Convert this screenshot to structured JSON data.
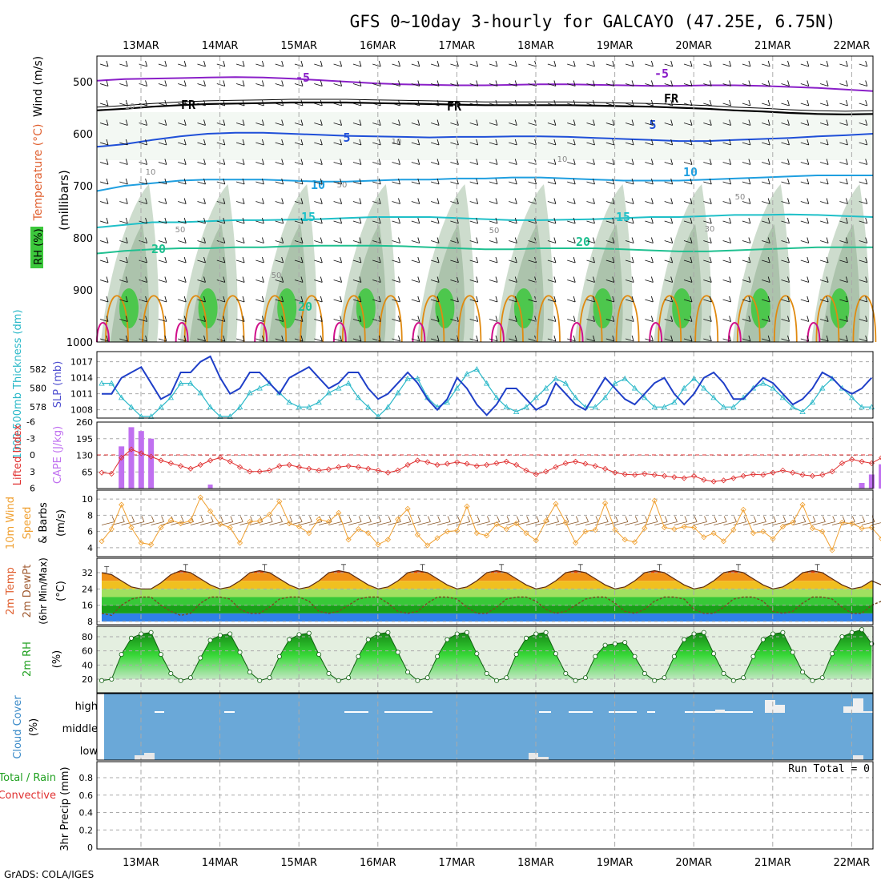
{
  "header": {
    "title": "GFS 0~10day 3-hourly for GALCAYO (47.25E, 6.75N)",
    "footer": "GrADS: COLA/IGES"
  },
  "colors": {
    "grid": "#aaaaaa",
    "rh_green": "#3cc83c",
    "slp": "#1f3fc8",
    "thickness": "#2ab8c8",
    "lifted": "#e03030",
    "cape": "#c070f0",
    "wind_orange": "#f0a030",
    "barb_brown": "#8b5a2b",
    "cloud_blue": "#6aa8d8",
    "rh2m_green": "#1fa01f"
  },
  "dates": [
    "13MAR",
    "14MAR",
    "15MAR",
    "16MAR",
    "17MAR",
    "18MAR",
    "19MAR",
    "20MAR",
    "21MAR",
    "22MAR"
  ],
  "chart_data": [
    {
      "type": "line",
      "panel": "upper_air",
      "ylabel_parts": [
        "RH (%)",
        "Temperature (°C)",
        "Wind (m/s)"
      ],
      "yunit": "(millibars)",
      "yticks": [
        500,
        600,
        700,
        800,
        900,
        1000
      ],
      "ylim": [
        450,
        1000
      ],
      "isotherm_labels": [
        "-5",
        "-5",
        "FR",
        "FR",
        "FR",
        "5",
        "5",
        "10",
        "10",
        "15",
        "15",
        "20",
        "20",
        "20"
      ],
      "rh_labels": [
        "10",
        "10",
        "10",
        "10",
        "50",
        "50",
        "50",
        "50",
        "50",
        "30"
      ],
      "isotherms": [
        {
          "name": "-5",
          "p": [
            498,
            495,
            494,
            493,
            492,
            491,
            492,
            494,
            497,
            500,
            503,
            505,
            506,
            507,
            507,
            506,
            505,
            505,
            506,
            507,
            508,
            508,
            507,
            507,
            508,
            510,
            512,
            515,
            518
          ]
        },
        {
          "name": "FR",
          "p": [
            555,
            552,
            548,
            545,
            543,
            542,
            541,
            540,
            540,
            540,
            541,
            542,
            543,
            544,
            545,
            545,
            545,
            545,
            546,
            547,
            548,
            550,
            552,
            555,
            557,
            560,
            562,
            563,
            562
          ]
        },
        {
          "name": "5",
          "p": [
            625,
            620,
            612,
            605,
            600,
            598,
            598,
            600,
            602,
            604,
            605,
            606,
            607,
            606,
            606,
            605,
            605,
            606,
            608,
            610,
            612,
            614,
            614,
            612,
            610,
            608,
            605,
            603,
            600
          ]
        },
        {
          "name": "10",
          "p": [
            710,
            700,
            695,
            690,
            688,
            688,
            688,
            690,
            692,
            692,
            690,
            688,
            688,
            686,
            686,
            684,
            684,
            686,
            688,
            690,
            690,
            690,
            688,
            686,
            684,
            682,
            680,
            680,
            680
          ]
        },
        {
          "name": "15",
          "p": [
            780,
            775,
            770,
            770,
            768,
            766,
            766,
            765,
            764,
            762,
            760,
            760,
            760,
            762,
            764,
            766,
            766,
            765,
            764,
            762,
            760,
            760,
            758,
            756,
            756,
            755,
            756,
            758,
            760
          ]
        },
        {
          "name": "20",
          "p": [
            830,
            825,
            822,
            820,
            820,
            818,
            818,
            816,
            815,
            815,
            815,
            816,
            818,
            820,
            822,
            822,
            820,
            820,
            820,
            822,
            824,
            826,
            826,
            824,
            822,
            820,
            818,
            818,
            818
          ]
        }
      ]
    },
    {
      "type": "line",
      "panel": "slp_thickness",
      "ylabel_left": "1000-500mb Thickness (dm)",
      "ylabel_right": "SLP (mb)",
      "yticks_left": [
        578,
        580,
        582
      ],
      "yticks_right": [
        1008,
        1011,
        1014,
        1017
      ],
      "series": [
        {
          "name": "SLP (mb)",
          "values": [
            1011,
            1011,
            1014,
            1015,
            1016,
            1013,
            1010,
            1011,
            1015,
            1015,
            1017,
            1018,
            1014,
            1011,
            1012,
            1015,
            1015,
            1013,
            1011,
            1014,
            1015,
            1016,
            1014,
            1012,
            1013,
            1015,
            1015,
            1012,
            1010,
            1011,
            1013,
            1015,
            1013,
            1010,
            1008,
            1010,
            1014,
            1012,
            1009,
            1007,
            1009,
            1012,
            1012,
            1010,
            1008,
            1009,
            1013,
            1011,
            1009,
            1008,
            1011,
            1014,
            1012,
            1010,
            1009,
            1011,
            1013,
            1014,
            1011,
            1009,
            1011,
            1014,
            1015,
            1013,
            1010,
            1010,
            1012,
            1014,
            1013,
            1011,
            1009,
            1010,
            1012,
            1015,
            1014,
            1012,
            1011,
            1012,
            1014
          ]
        },
        {
          "name": "1000-500mb Thickness (dm)",
          "values": [
            580.5,
            580.5,
            579,
            578,
            577,
            577,
            578,
            579,
            580.5,
            580.5,
            579.5,
            578,
            577,
            577,
            578,
            579.5,
            580,
            580.5,
            579.5,
            578.5,
            578,
            578,
            578.5,
            579.5,
            580,
            580.5,
            579,
            578,
            577,
            578,
            579.5,
            581,
            581,
            579,
            578,
            578.5,
            580,
            581.5,
            582,
            580.5,
            579,
            578,
            577.5,
            578,
            579,
            580,
            581,
            580.5,
            579,
            578,
            578,
            579,
            580.5,
            581,
            580,
            579,
            578,
            578,
            578.5,
            580,
            581,
            580,
            579,
            578,
            578,
            579,
            580,
            580.5,
            580,
            579,
            578,
            577.5,
            578.5,
            580,
            581,
            580,
            579,
            578,
            578
          ]
        }
      ]
    },
    {
      "type": "bar",
      "panel": "cape_li",
      "ylabel_left": "Lifted Index",
      "ylabel_right": "CAPE (J/kg)",
      "yticks_left": [
        -6,
        -3,
        0,
        3,
        6
      ],
      "yticks_right": [
        65,
        130,
        195,
        260
      ],
      "cape": [
        0,
        0,
        165,
        240,
        225,
        195,
        0,
        0,
        0,
        0,
        0,
        0,
        0,
        0,
        0,
        0,
        0,
        0,
        0,
        0,
        0,
        0,
        0,
        0,
        0,
        0,
        0,
        0,
        0,
        0,
        0,
        0,
        0,
        0,
        0,
        0,
        0,
        0,
        0,
        0,
        0,
        0,
        0,
        0,
        0,
        0,
        0,
        0,
        0,
        0,
        0,
        0,
        0,
        0,
        0,
        0,
        0,
        0,
        0,
        0,
        0,
        0,
        0,
        0,
        0,
        0,
        0,
        0,
        0,
        0,
        0,
        0,
        0,
        0,
        0,
        0,
        0,
        22,
        55,
        95,
        55
      ],
      "lifted_index": [
        3.2,
        3.4,
        0.5,
        -1,
        -0.3,
        0.3,
        1,
        1.5,
        2,
        2.5,
        1.8,
        1,
        0.5,
        1.2,
        2.2,
        3,
        3,
        2.8,
        2,
        1.8,
        2.2,
        2.5,
        2.8,
        2.6,
        2.2,
        2,
        2.2,
        2.5,
        2.8,
        3.2,
        2.8,
        1.8,
        1,
        1.3,
        1.8,
        1.6,
        1.3,
        1.6,
        2,
        1.8,
        1.5,
        1.2,
        1.8,
        2.8,
        3.5,
        3,
        2.2,
        1.5,
        1.2,
        1.6,
        2,
        2.5,
        3.2,
        3.5,
        3.6,
        3.4,
        3.6,
        3.8,
        4,
        4.2,
        3.8,
        4.5,
        4.8,
        4.6,
        4.2,
        3.8,
        3.5,
        3.6,
        3.2,
        2.8,
        3.2,
        3.6,
        3.8,
        3.6,
        3,
        1.5,
        0.8,
        1.2,
        1.5,
        0.5,
        -0.1,
        -0.8,
        -0.5,
        -0.3,
        1
      ]
    },
    {
      "type": "line",
      "panel": "wind10m",
      "ylabel": "10m Wind Speed & Barbs (m/s)",
      "yticks": [
        4,
        6,
        8,
        10
      ],
      "values": [
        4.8,
        6.3,
        9.3,
        6.5,
        4.6,
        4.4,
        6.5,
        7.4,
        7.0,
        7.3,
        10.2,
        8.5,
        6.9,
        6.5,
        4.6,
        7.2,
        7.3,
        8.1,
        9.7,
        7.0,
        6.6,
        5.8,
        7.5,
        7.2,
        8.3,
        5.0,
        6.3,
        5.8,
        4.4,
        5.0,
        7.5,
        8.8,
        5.6,
        4.3,
        5.2,
        6.0,
        6.1,
        9.1,
        5.8,
        5.5,
        6.9,
        6.3,
        7.0,
        5.8,
        4.9,
        7.3,
        9.4,
        7.1,
        4.6,
        6.0,
        6.2,
        9.5,
        6.2,
        5.0,
        4.7,
        6.4,
        9.8,
        6.5,
        6.3,
        6.6,
        6.5,
        5.3,
        5.8,
        4.8,
        6.2,
        8.7,
        5.8,
        6.0,
        5.1,
        6.6,
        7.1,
        9.3,
        6.4,
        6.0,
        3.7,
        7.1,
        7.0,
        6.4,
        6.5,
        5.1,
        4.9,
        6.0
      ]
    },
    {
      "type": "area",
      "panel": "temp2m",
      "ylabel": "2m Temp 2m DewPt (6hr Min/Max) (°C)",
      "yticks": [
        8,
        16,
        24,
        32
      ],
      "temp": [
        32,
        31,
        28,
        25,
        24,
        24,
        27,
        31,
        33,
        32,
        29,
        26,
        24,
        25,
        28,
        32,
        33,
        32,
        29,
        26,
        24,
        25,
        28,
        32,
        33,
        32,
        29,
        26,
        24,
        25,
        28,
        32,
        33,
        32,
        29,
        26,
        24,
        25,
        28,
        32,
        33,
        32,
        29,
        26,
        24,
        25,
        28,
        32,
        33,
        32,
        29,
        26,
        24,
        25,
        28,
        32,
        33,
        32,
        29,
        26,
        24,
        25,
        28,
        32,
        33,
        32,
        29,
        26,
        24,
        25,
        28,
        32,
        33,
        32,
        29,
        26,
        24,
        25,
        28,
        26
      ],
      "dewpt": [
        12,
        11,
        16,
        19,
        20,
        20,
        16,
        13,
        11,
        12,
        17,
        20,
        20,
        19,
        14,
        12,
        12,
        15,
        19,
        20,
        20,
        18,
        13,
        12,
        13,
        16,
        19,
        20,
        20,
        17,
        13,
        12,
        13,
        17,
        20,
        20,
        19,
        15,
        12,
        12,
        15,
        19,
        20,
        20,
        18,
        14,
        12,
        13,
        16,
        19,
        20,
        20,
        17,
        13,
        12,
        14,
        18,
        20,
        20,
        19,
        14,
        12,
        12,
        15,
        19,
        20,
        20,
        18,
        13,
        12,
        13,
        17,
        20,
        20,
        19,
        15,
        12,
        12,
        16,
        18
      ]
    },
    {
      "type": "area",
      "panel": "rh2m",
      "ylabel": "2m RH (%)",
      "yticks": [
        20,
        40,
        60,
        80
      ],
      "values": [
        18,
        20,
        55,
        78,
        84,
        86,
        55,
        28,
        18,
        22,
        50,
        75,
        82,
        84,
        58,
        30,
        18,
        22,
        52,
        76,
        83,
        85,
        55,
        28,
        18,
        22,
        52,
        76,
        84,
        86,
        58,
        30,
        18,
        22,
        52,
        76,
        84,
        86,
        56,
        28,
        18,
        22,
        55,
        78,
        84,
        86,
        56,
        28,
        18,
        22,
        52,
        68,
        70,
        72,
        52,
        28,
        18,
        22,
        52,
        76,
        84,
        86,
        56,
        28,
        18,
        22,
        52,
        76,
        84,
        86,
        58,
        30,
        18,
        22,
        56,
        80,
        86,
        90,
        70
      ]
    },
    {
      "type": "bar",
      "panel": "cloud",
      "ylabel": "Cloud Cover (%)",
      "levels": [
        "high",
        "middle",
        "low"
      ]
    },
    {
      "type": "bar",
      "panel": "precip",
      "ylabel": "3hr Precip (mm)",
      "ylabel_side": "Total / Rain",
      "ylabel_side2": "Convective",
      "yticks": [
        "0",
        "0.2",
        "0.4",
        "0.6",
        "0.8"
      ],
      "run_total": "Run Total = 0",
      "values": []
    }
  ]
}
